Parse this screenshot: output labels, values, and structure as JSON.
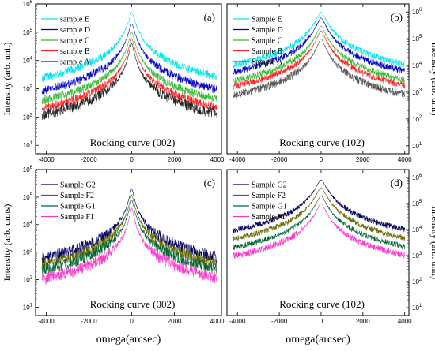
{
  "chart_data": [
    {
      "id": "a",
      "type": "line",
      "panel_label": "(a)",
      "annotation": "Rocking curve (002)",
      "ylabel": "Intensity (arb. unit)",
      "ylabel_side": "left",
      "xlabel": "",
      "xlim": [
        -4500,
        4200
      ],
      "ylim": [
        5,
        1000000
      ],
      "yscale": "log",
      "xticks": [
        -4000,
        -2000,
        0,
        2000,
        4000
      ],
      "xtick_labels": [
        "-4000",
        "-2000",
        "0",
        "2000",
        "4000"
      ],
      "legend_position": "top-left",
      "series": [
        {
          "name": "sample E",
          "color": "#00e5ee",
          "peak": 500000,
          "tail": 90,
          "halfwidth": 150,
          "noise": 0.35
        },
        {
          "name": "sample D",
          "color": "#0000cc",
          "peak": 200000,
          "tail": 45,
          "halfwidth": 140,
          "noise": 0.35
        },
        {
          "name": "sample C",
          "color": "#33bb33",
          "peak": 100000,
          "tail": 30,
          "halfwidth": 130,
          "noise": 0.35
        },
        {
          "name": "sample B",
          "color": "#ff2222",
          "peak": 60000,
          "tail": 20,
          "halfwidth": 120,
          "noise": 0.35
        },
        {
          "name": "sample A",
          "color": "#222222",
          "peak": 40000,
          "tail": 10,
          "halfwidth": 110,
          "noise": 0.45
        }
      ]
    },
    {
      "id": "b",
      "type": "line",
      "panel_label": "(b)",
      "annotation": "Rocking curve (102)",
      "ylabel": "Intensity (arb. unit)",
      "ylabel_side": "right",
      "xlabel": "",
      "xlim": [
        -4500,
        4200
      ],
      "ylim": [
        5,
        2000000
      ],
      "yscale": "log",
      "xticks": [
        -4000,
        -2000,
        0,
        2000,
        4000
      ],
      "xtick_labels": [
        "-4000",
        "-2000",
        "0",
        "2000",
        "4000"
      ],
      "legend_position": "top-left",
      "series": [
        {
          "name": "Sample E",
          "color": "#00e5ee",
          "peak": 1000000,
          "tail": 160,
          "halfwidth": 240,
          "noise": 0.3
        },
        {
          "name": "Sample D",
          "color": "#0000cc",
          "peak": 600000,
          "tail": 60,
          "halfwidth": 230,
          "noise": 0.3
        },
        {
          "name": "Sample C",
          "color": "#33bb33",
          "peak": 300000,
          "tail": 35,
          "halfwidth": 220,
          "noise": 0.3
        },
        {
          "name": "Sample B",
          "color": "#ff2222",
          "peak": 200000,
          "tail": 25,
          "halfwidth": 210,
          "noise": 0.3
        },
        {
          "name": "Sample A",
          "color": "#555555",
          "peak": 100000,
          "tail": 12,
          "halfwidth": 200,
          "noise": 0.35
        }
      ]
    },
    {
      "id": "c",
      "type": "line",
      "panel_label": "(c)",
      "annotation": "Rocking curve (002)",
      "ylabel": "Intensity (arb. units)",
      "ylabel_side": "left",
      "xlabel": "omega(arcsec)",
      "xlim": [
        -4500,
        4200
      ],
      "ylim": [
        5,
        1000000
      ],
      "yscale": "log",
      "xticks": [
        -4000,
        -2000,
        0,
        2000,
        4000
      ],
      "xtick_labels": [
        "-4000",
        "-2000",
        "0",
        "2000",
        "4000"
      ],
      "legend_position": "top-left",
      "series": [
        {
          "name": "Sample G2",
          "color": "#000066",
          "peak": 200000,
          "tail": 60,
          "halfwidth": 110,
          "noise": 0.5
        },
        {
          "name": "Sample F2",
          "color": "#666600",
          "peak": 120000,
          "tail": 45,
          "halfwidth": 110,
          "noise": 0.5
        },
        {
          "name": "Sample G1",
          "color": "#006633",
          "peak": 80000,
          "tail": 30,
          "halfwidth": 105,
          "noise": 0.5
        },
        {
          "name": "Sample F1",
          "color": "#ff33cc",
          "peak": 40000,
          "tail": 15,
          "halfwidth": 100,
          "noise": 0.5
        }
      ]
    },
    {
      "id": "d",
      "type": "line",
      "panel_label": "(d)",
      "annotation": "Rocking curve (102)",
      "ylabel": "Intensity (arb. unit)",
      "ylabel_side": "right",
      "xlabel": "omega(arcsec)",
      "xlim": [
        -4500,
        4200
      ],
      "ylim": [
        5,
        2000000
      ],
      "yscale": "log",
      "xticks": [
        -4000,
        -2000,
        0,
        2000,
        4000
      ],
      "xtick_labels": [
        "-4000",
        "-2000",
        "0",
        "2000",
        "4000"
      ],
      "legend_position": "top-left",
      "series": [
        {
          "name": "Sample G2",
          "color": "#000066",
          "peak": 800000,
          "tail": 200,
          "halfwidth": 260,
          "noise": 0.25
        },
        {
          "name": "Sample F2",
          "color": "#666600",
          "peak": 400000,
          "tail": 90,
          "halfwidth": 250,
          "noise": 0.25
        },
        {
          "name": "Sample G1",
          "color": "#006633",
          "peak": 200000,
          "tail": 45,
          "halfwidth": 240,
          "noise": 0.25
        },
        {
          "name": "Sample F1",
          "color": "#ff33cc",
          "peak": 100000,
          "tail": 20,
          "halfwidth": 230,
          "noise": 0.3
        }
      ]
    }
  ]
}
